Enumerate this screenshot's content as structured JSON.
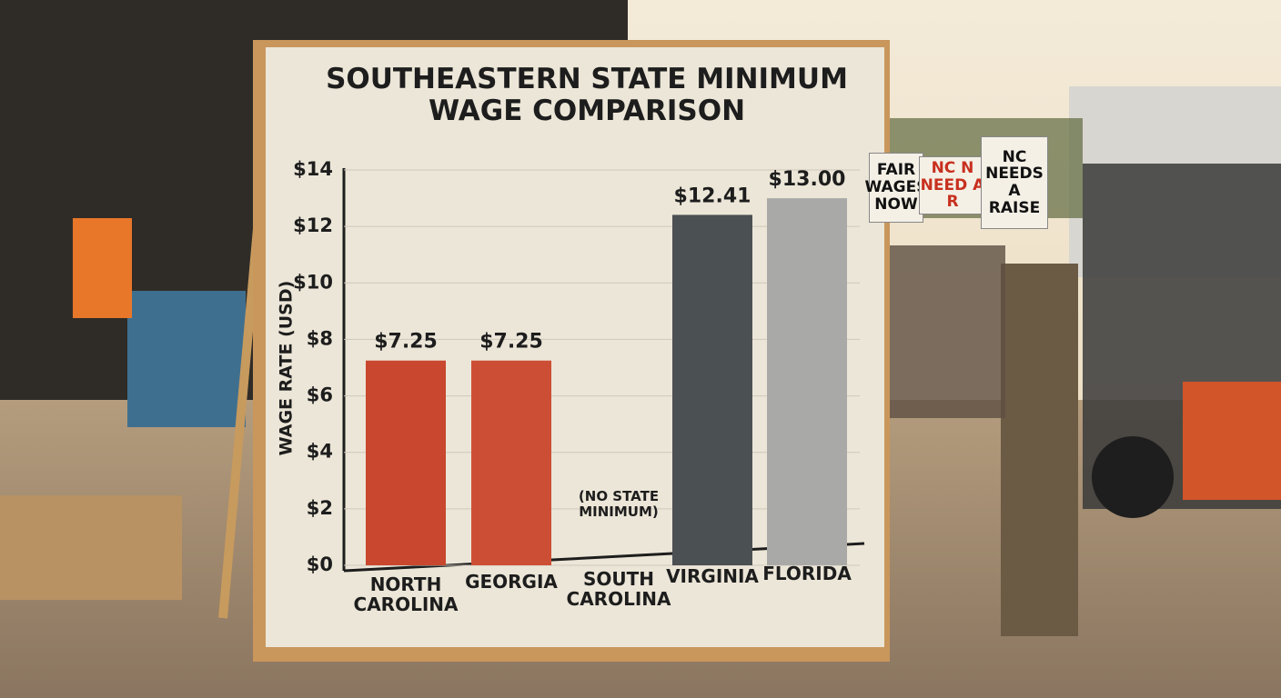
{
  "chart_data": {
    "type": "bar",
    "title": "SOUTHEASTERN STATE MINIMUM WAGE COMPARISON",
    "y_label": "WAGE RATE (USD)",
    "categories": [
      "NORTH CAROLINA",
      "GEORGIA",
      "SOUTH CAROLINA",
      "VIRGINIA",
      "FLORIDA"
    ],
    "values": [
      7.25,
      7.25,
      null,
      12.41,
      13.0
    ],
    "value_labels": [
      "$7.25",
      "$7.25",
      null,
      "$12.41",
      "$13.00"
    ],
    "colors": [
      "#c8472e",
      "#cc4f35",
      null,
      "#4b5053",
      "#a9aaa8"
    ],
    "annotation": {
      "category_index": 2,
      "text": "(NO STATE MINIMUM)"
    },
    "ylim": [
      0,
      14
    ],
    "yticks": [
      {
        "value": 0,
        "label": "$0"
      },
      {
        "value": 2,
        "label": "$2"
      },
      {
        "value": 4,
        "label": "$4"
      },
      {
        "value": 6,
        "label": "$6"
      },
      {
        "value": 8,
        "label": "$8"
      },
      {
        "value": 10,
        "label": "$10"
      },
      {
        "value": 12,
        "label": "$12"
      },
      {
        "value": 14,
        "label": "$14"
      }
    ],
    "grid": true
  },
  "signs": [
    "FAIR WAGES NOW",
    "NC N NEED A R",
    "NC NEEDS A RAISE"
  ]
}
